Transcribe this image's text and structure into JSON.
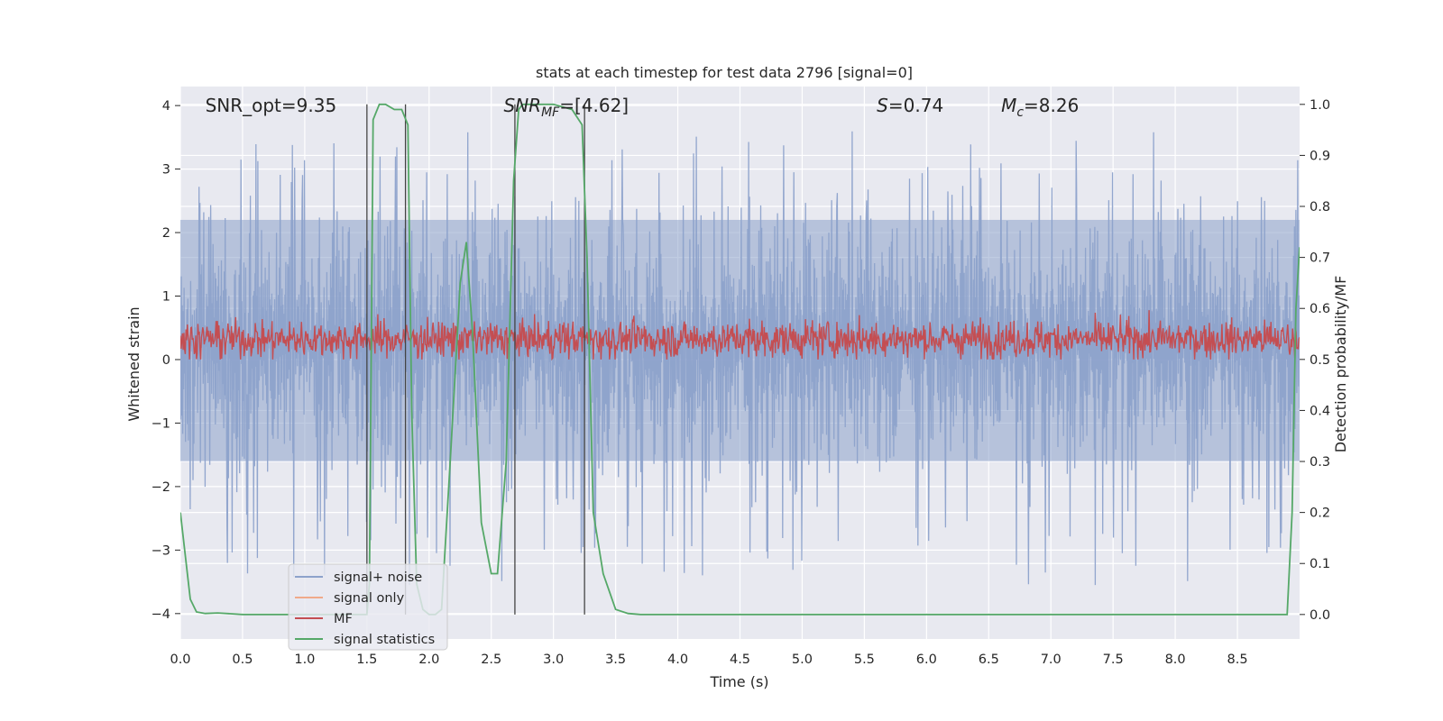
{
  "chart_data": {
    "type": "line",
    "title": "stats at each timestep for test data 2796 [signal=0]",
    "xlabel": "Time (s)",
    "ylabel": "Whitened strain",
    "y2label": "Detection probability/MF",
    "xlim": [
      0,
      9.0
    ],
    "ylim": [
      -4.4,
      4.3
    ],
    "y2lim": [
      -0.048,
      1.035
    ],
    "x_ticks": [
      "0.0",
      "0.5",
      "1.0",
      "1.5",
      "2.0",
      "2.5",
      "3.0",
      "3.5",
      "4.0",
      "4.5",
      "5.0",
      "5.5",
      "6.0",
      "6.5",
      "7.0",
      "7.5",
      "8.0",
      "8.5"
    ],
    "y_ticks": [
      "4",
      "3",
      "2",
      "1",
      "0",
      "−1",
      "−2",
      "−3",
      "−4"
    ],
    "y2_ticks": [
      "1.0",
      "0.9",
      "0.8",
      "0.7",
      "0.6",
      "0.5",
      "0.4",
      "0.3",
      "0.2",
      "0.1",
      "0.0"
    ],
    "annotations": [
      {
        "text": "SNR_opt=9.35",
        "x": 0.2
      },
      {
        "text": "SNR_MF=[4.62]",
        "x": 2.6
      },
      {
        "text": "S=0.74",
        "x": 5.6
      },
      {
        "text": "M_c=8.26",
        "x": 6.6
      }
    ],
    "vlines_x": [
      1.5,
      1.81,
      2.69,
      3.25
    ],
    "legend": {
      "position": "lower-left",
      "entries": [
        "signal+ noise",
        "signal only",
        "MF",
        "signal statistics"
      ]
    },
    "series": [
      {
        "name": "signal+ noise",
        "color": "#8da2cb",
        "axis": "left",
        "description_stats": {
          "band_min": -1.6,
          "band_max": 2.2,
          "spike_max": 3.9,
          "spike_min": -3.85
        }
      },
      {
        "name": "signal only",
        "color": "#f0a98a",
        "axis": "left",
        "values": []
      },
      {
        "name": "MF",
        "color": "#c44e52",
        "axis": "right",
        "description_stats": {
          "mean": 0.54,
          "min": 0.5,
          "max": 0.62
        }
      },
      {
        "name": "signal statistics",
        "color": "#55a868",
        "axis": "right",
        "x": [
          0.0,
          0.08,
          0.13,
          0.2,
          0.3,
          0.5,
          0.7,
          1.0,
          1.3,
          1.45,
          1.5,
          1.52,
          1.55,
          1.6,
          1.65,
          1.72,
          1.78,
          1.83,
          1.86,
          1.9,
          1.95,
          2.0,
          2.05,
          2.1,
          2.17,
          2.25,
          2.3,
          2.35,
          2.42,
          2.5,
          2.55,
          2.62,
          2.68,
          2.72,
          2.75,
          2.8,
          3.0,
          3.15,
          3.23,
          3.27,
          3.32,
          3.4,
          3.5,
          3.6,
          3.7,
          4.0,
          6.0,
          8.0,
          8.9,
          8.94,
          8.97,
          9.0
        ],
        "values": [
          0.2,
          0.03,
          0.005,
          0.002,
          0.003,
          0.0,
          0.0,
          0.0,
          0.0,
          0.0,
          0.0,
          0.06,
          0.97,
          1.0,
          1.0,
          0.99,
          0.99,
          0.96,
          0.4,
          0.06,
          0.01,
          0.0,
          0.0,
          0.01,
          0.3,
          0.65,
          0.73,
          0.55,
          0.18,
          0.08,
          0.08,
          0.3,
          0.85,
          0.99,
          1.0,
          1.0,
          1.0,
          0.99,
          0.96,
          0.7,
          0.2,
          0.08,
          0.01,
          0.002,
          0.0,
          0.0,
          0.0,
          0.0,
          0.0,
          0.2,
          0.6,
          0.72
        ]
      }
    ]
  }
}
